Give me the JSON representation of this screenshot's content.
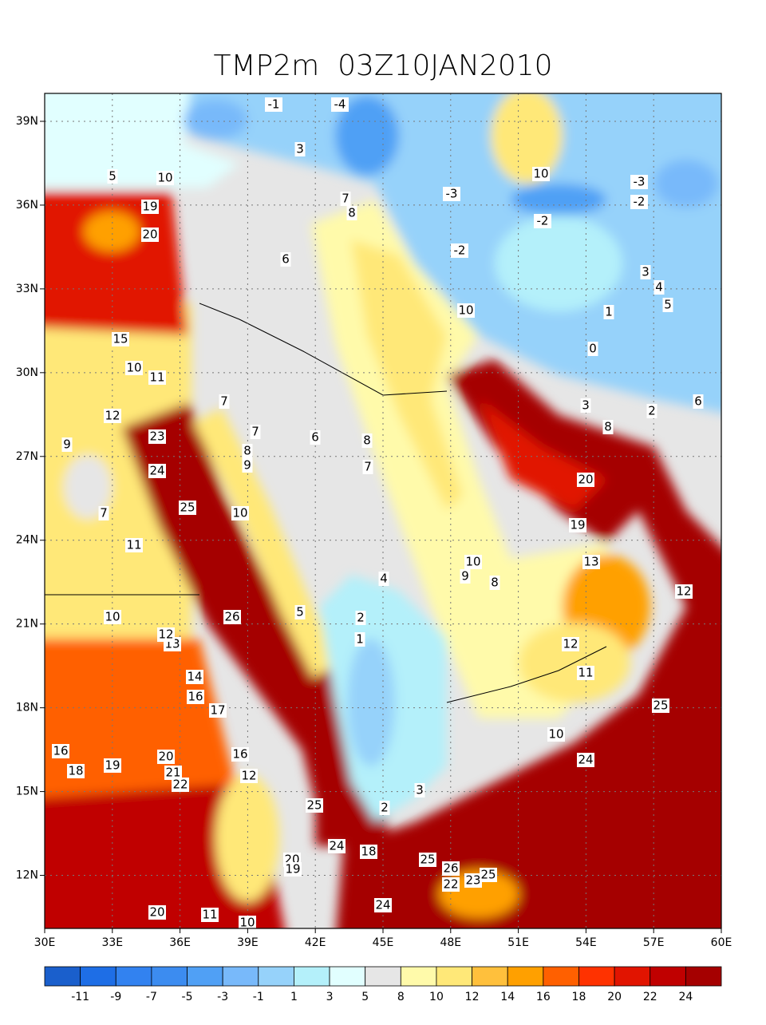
{
  "chart_data": {
    "type": "contour-map",
    "title": "TMP2m  03Z10JAN2010",
    "xlim": [
      30,
      60
    ],
    "ylim": [
      10.1,
      40
    ],
    "xticks": [
      {
        "value": 30,
        "label": "30E"
      },
      {
        "value": 33,
        "label": "33E"
      },
      {
        "value": 36,
        "label": "36E"
      },
      {
        "value": 39,
        "label": "39E"
      },
      {
        "value": 42,
        "label": "42E"
      },
      {
        "value": 45,
        "label": "45E"
      },
      {
        "value": 48,
        "label": "48E"
      },
      {
        "value": 51,
        "label": "51E"
      },
      {
        "value": 54,
        "label": "54E"
      },
      {
        "value": 57,
        "label": "57E"
      },
      {
        "value": 60,
        "label": "60E"
      }
    ],
    "yticks": [
      {
        "value": 12,
        "label": "12N"
      },
      {
        "value": 15,
        "label": "15N"
      },
      {
        "value": 18,
        "label": "18N"
      },
      {
        "value": 21,
        "label": "21N"
      },
      {
        "value": 24,
        "label": "24N"
      },
      {
        "value": 27,
        "label": "27N"
      },
      {
        "value": 30,
        "label": "30N"
      },
      {
        "value": 33,
        "label": "33N"
      },
      {
        "value": 36,
        "label": "36N"
      },
      {
        "value": 39,
        "label": "39N"
      }
    ],
    "grid": true,
    "colorbar": {
      "colors": [
        "#1a5fcc",
        "#1e6ee6",
        "#3282f0",
        "#3c8cf0",
        "#50a0f5",
        "#78b9fa",
        "#96d2fa",
        "#b4f0fa",
        "#e1ffff",
        "#e6e6e6",
        "#fffaaa",
        "#ffe878",
        "#ffc03c",
        "#ffa000",
        "#ff6000",
        "#ff3200",
        "#e11400",
        "#c00000",
        "#a50000"
      ],
      "levels": [
        -11,
        -9,
        -7,
        -5,
        -3,
        -1,
        1,
        3,
        5,
        8,
        10,
        12,
        14,
        16,
        18,
        20,
        22,
        24
      ]
    },
    "contour_labels": [
      -1,
      -4,
      3,
      5,
      10,
      19,
      20,
      6,
      7,
      8,
      -3,
      -2,
      -2,
      -3,
      -2,
      10,
      3,
      4,
      5,
      1,
      0,
      10,
      15,
      10,
      11,
      7,
      12,
      23,
      9,
      6,
      8,
      7,
      7,
      8,
      9,
      24,
      25,
      10,
      11,
      7,
      6,
      3,
      8,
      2,
      20,
      19,
      13,
      10,
      9,
      8,
      4,
      12,
      10,
      26,
      5,
      2,
      1,
      12,
      11,
      13,
      12,
      14,
      16,
      17,
      25,
      10,
      24,
      16,
      18,
      19,
      20,
      21,
      22,
      16,
      12,
      25,
      3,
      2,
      24,
      18,
      20,
      19,
      25,
      26,
      22,
      23,
      25,
      24,
      20,
      11,
      10
    ]
  }
}
